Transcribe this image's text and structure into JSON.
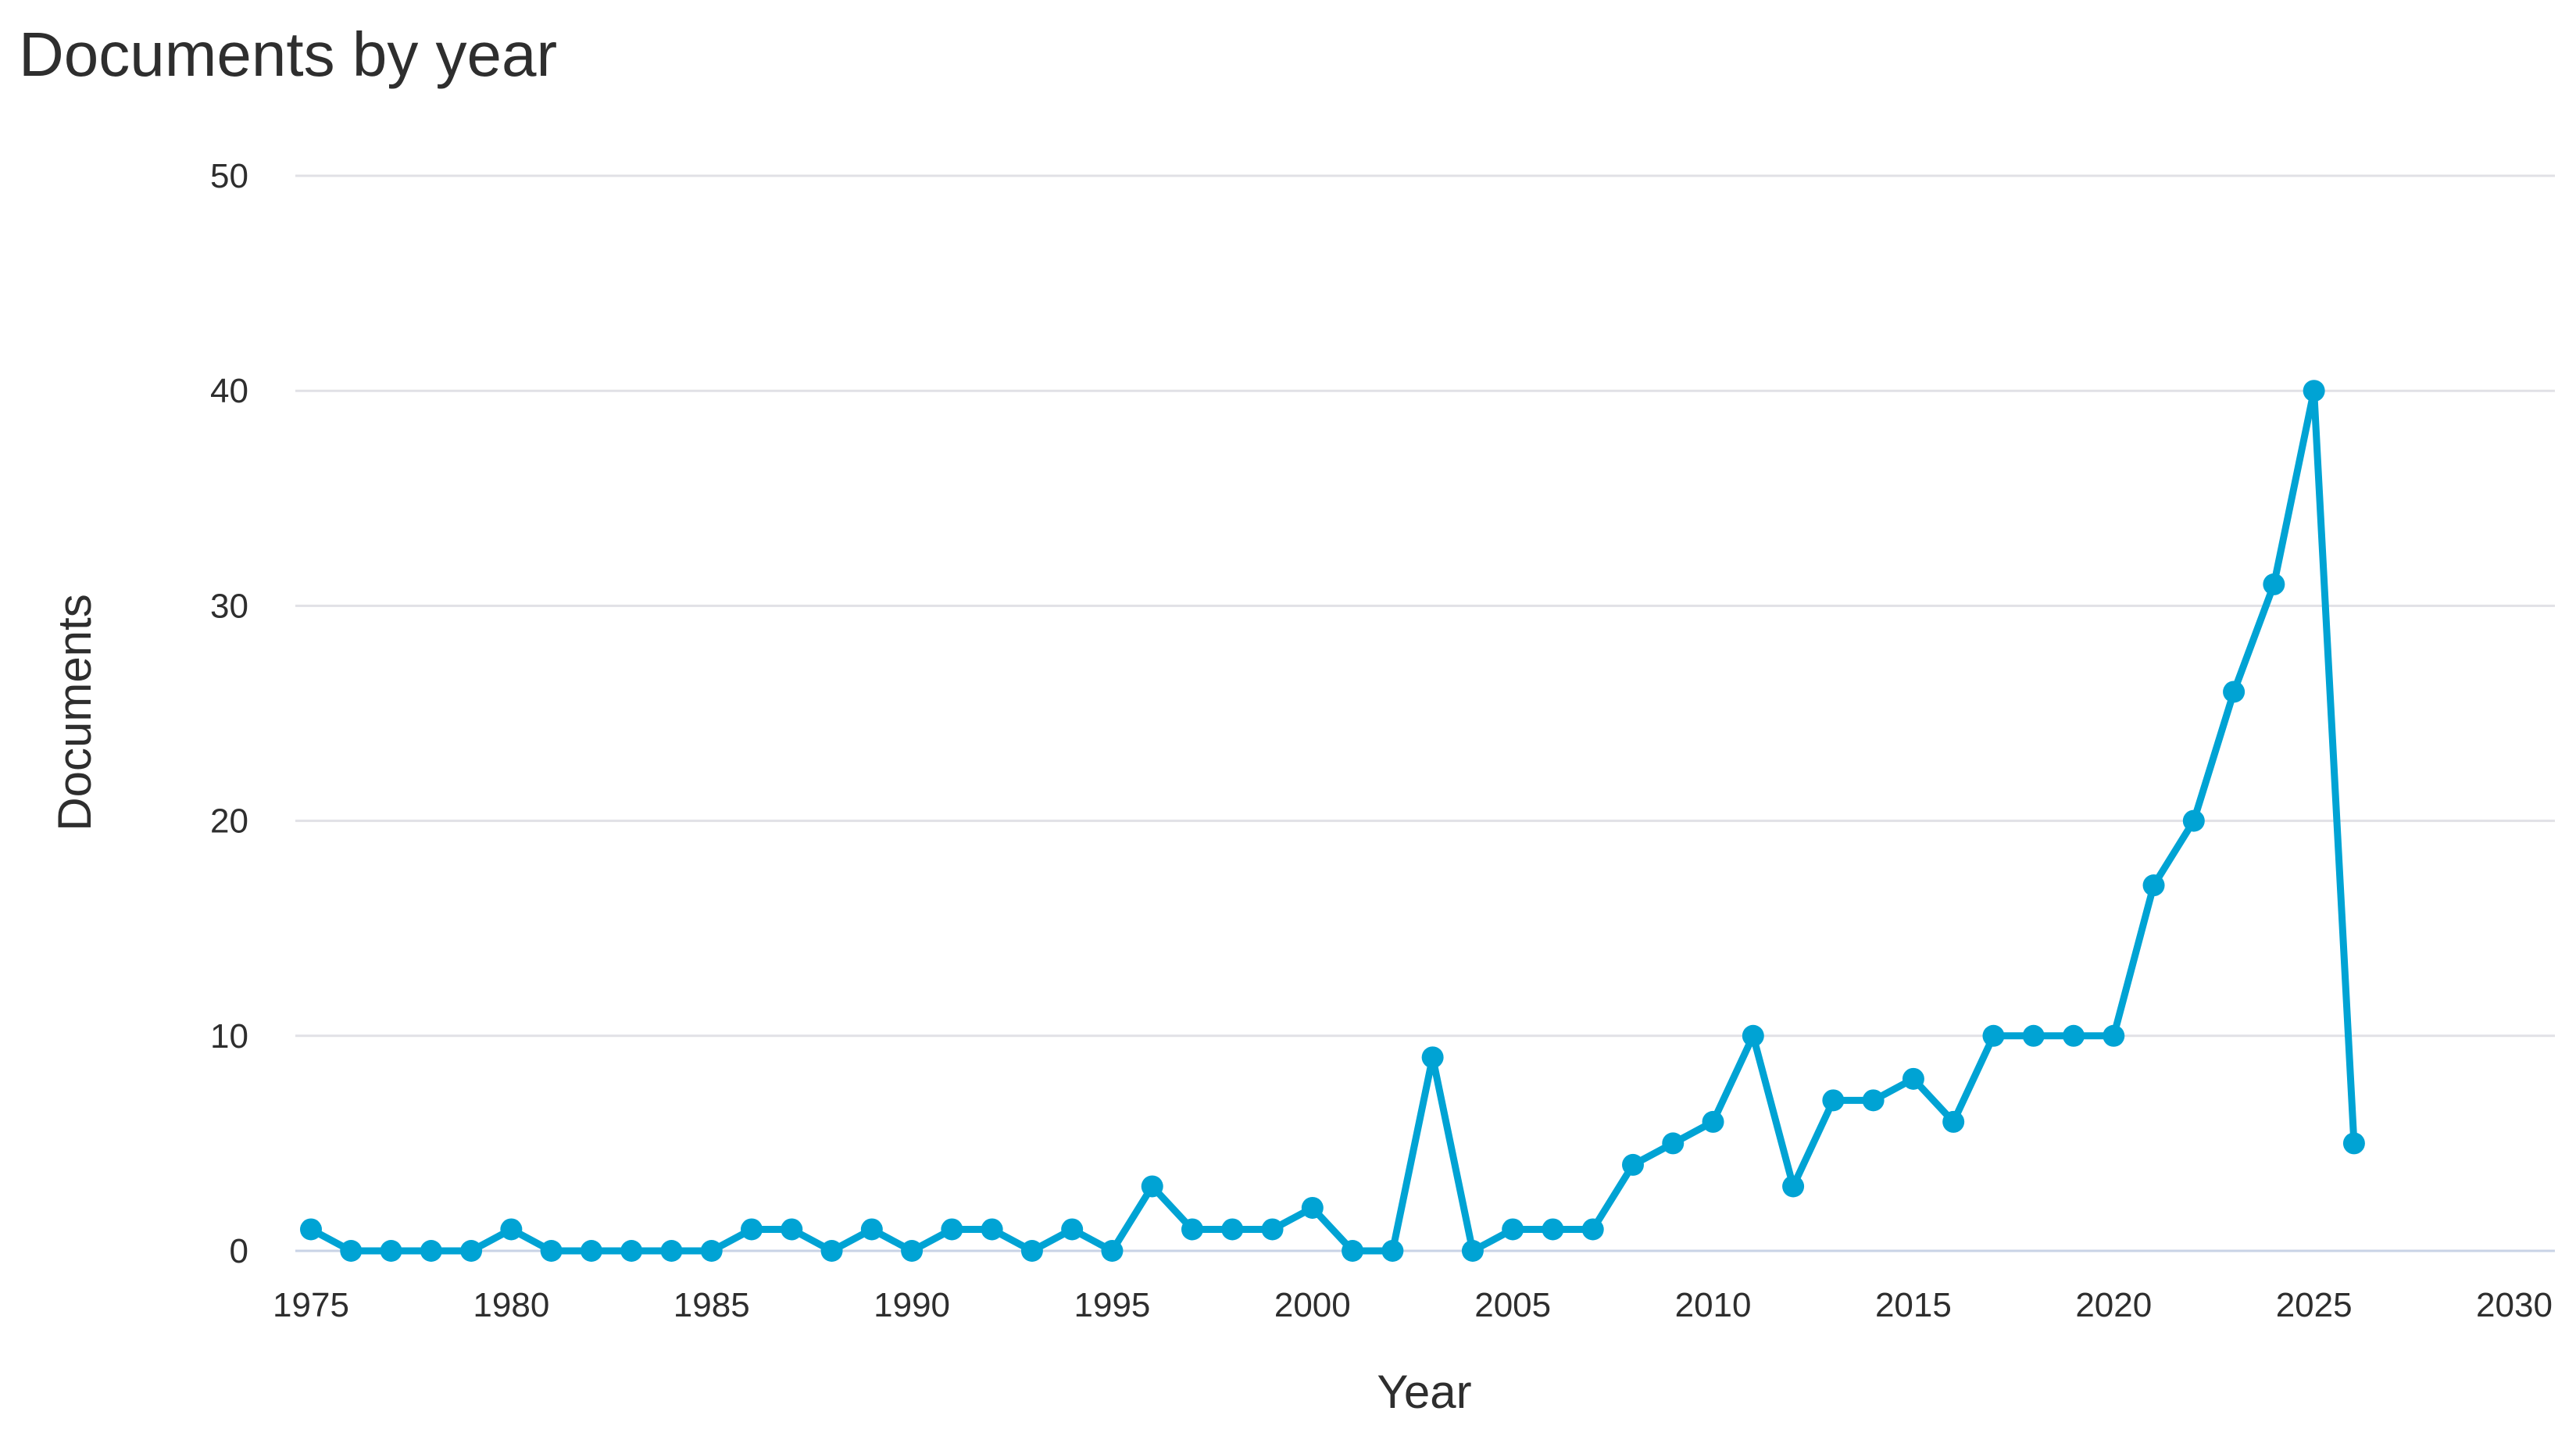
{
  "chart_data": {
    "type": "line",
    "title": "Documents by year",
    "xlabel": "Year",
    "ylabel": "Documents",
    "xlim": [
      1975,
      2030
    ],
    "ylim": [
      0,
      50
    ],
    "x_ticks": [
      1975,
      1980,
      1985,
      1990,
      1995,
      2000,
      2005,
      2010,
      2015,
      2020,
      2025,
      2030
    ],
    "y_ticks": [
      0,
      10,
      20,
      30,
      40,
      50
    ],
    "grid": true,
    "line_color": "#00a3d4",
    "series": [
      {
        "x": [
          1975,
          1976,
          1977,
          1978,
          1979,
          1980,
          1981,
          1982,
          1983,
          1984,
          1985,
          1986,
          1987,
          1988,
          1989,
          1990,
          1991,
          1992,
          1993,
          1994,
          1995,
          1996,
          1997,
          1998,
          1999,
          2000,
          2001,
          2002,
          2003,
          2004,
          2005,
          2006,
          2007,
          2008,
          2009,
          2010,
          2011,
          2012,
          2013,
          2014,
          2015,
          2016,
          2017,
          2018,
          2019,
          2020,
          2021,
          2022,
          2023,
          2024,
          2025,
          2026
        ],
        "values": [
          1,
          0,
          0,
          0,
          0,
          1,
          0,
          0,
          0,
          0,
          0,
          1,
          1,
          0,
          1,
          0,
          1,
          1,
          0,
          1,
          0,
          3,
          1,
          1,
          1,
          2,
          0,
          0,
          9,
          0,
          1,
          1,
          1,
          4,
          5,
          6,
          10,
          3,
          7,
          7,
          8,
          6,
          10,
          10,
          10,
          10,
          17,
          20,
          26,
          31,
          40,
          5
        ]
      }
    ]
  }
}
